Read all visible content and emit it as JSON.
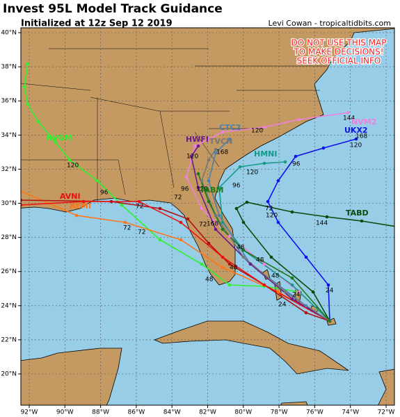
{
  "header": {
    "title": "Invest 95L Model Track Guidance",
    "subtitle": "Initialized at 12z Sep 12 2019",
    "credit": "Levi Cowan - tropicaltidbits.com"
  },
  "warning": [
    "DO NOT USE THIS MAP",
    "TO MAKE DECISIONS!",
    "SEEK OFFICIAL INFO"
  ],
  "lat_labels": [
    "40°N",
    "38°N",
    "36°N",
    "34°N",
    "32°N",
    "30°N",
    "28°N",
    "26°N",
    "24°N",
    "22°N",
    "20°N"
  ],
  "lon_labels": [
    "92°W",
    "90°W",
    "88°W",
    "86°W",
    "84°W",
    "82°W",
    "80°W",
    "78°W",
    "76°W",
    "74°W",
    "72°W"
  ],
  "track_labels": [
    "NVGM",
    "AVNI",
    "AEMI",
    "TABD",
    "UKX2",
    "NVM2",
    "HMNI",
    "CTC2",
    "HWFI",
    "TVCN",
    "TABM"
  ],
  "hour_labels": [
    120,
    96,
    72,
    72,
    72,
    48,
    48,
    72,
    72,
    168,
    120,
    96,
    96,
    120,
    144,
    120,
    72,
    96,
    120,
    168,
    144,
    120,
    120,
    168,
    48,
    24,
    24,
    24,
    48,
    48
  ]
}
